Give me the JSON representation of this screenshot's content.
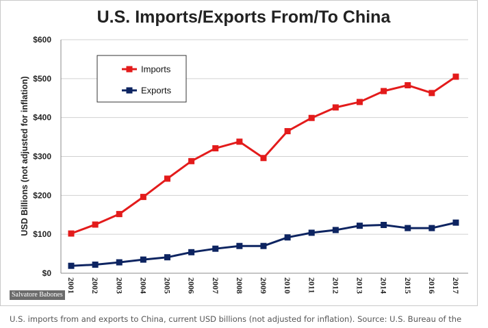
{
  "credit": "Salvatore Babones",
  "caption": "U.S. imports from and exports to China, current USD billions (not adjusted for inflation). Source: U.S. Bureau of the",
  "chart_data": {
    "type": "line",
    "title": "U.S. Imports/Exports From/To China",
    "xlabel": "",
    "ylabel": "USD Billions (not adjusted for inflation)",
    "ylim": [
      0,
      600
    ],
    "yticks": [
      0,
      100,
      200,
      300,
      400,
      500,
      600
    ],
    "ytick_labels": [
      "$0",
      "$100",
      "$200",
      "$300",
      "$400",
      "$500",
      "$600"
    ],
    "categories": [
      "2001",
      "2002",
      "2003",
      "2004",
      "2005",
      "2006",
      "2007",
      "2008",
      "2009",
      "2010",
      "2011",
      "2012",
      "2013",
      "2014",
      "2015",
      "2016",
      "2017"
    ],
    "grid": true,
    "legend_position": "top-left",
    "series": [
      {
        "name": "Imports",
        "color": "#e31b1b",
        "marker": "square",
        "values": [
          102,
          125,
          152,
          196,
          243,
          288,
          321,
          338,
          296,
          365,
          399,
          426,
          440,
          468,
          483,
          463,
          505
        ]
      },
      {
        "name": "Exports",
        "color": "#0d2461",
        "marker": "square",
        "values": [
          19,
          22,
          28,
          35,
          41,
          54,
          63,
          70,
          70,
          92,
          104,
          111,
          122,
          124,
          116,
          116,
          130
        ]
      }
    ]
  }
}
